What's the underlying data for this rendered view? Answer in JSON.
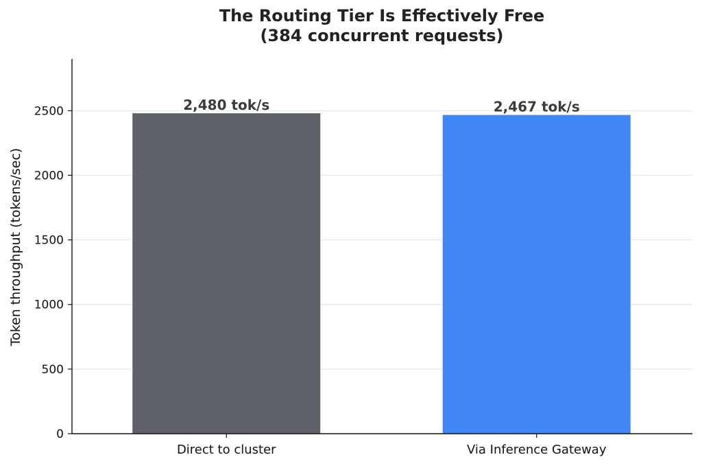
{
  "chart_data": {
    "type": "bar",
    "title": "The Routing Tier Is Effectively Free",
    "subtitle": "(384 concurrent requests)",
    "xlabel": "",
    "ylabel": "Token throughput (tokens/sec)",
    "categories": [
      "Direct to cluster",
      "Via Inference Gateway"
    ],
    "values": [
      2480,
      2467
    ],
    "data_labels": [
      "2,480 tok/s",
      "2,467 tok/s"
    ],
    "colors": [
      "#5f6168",
      "#4285f4"
    ],
    "ylim": [
      0,
      2900
    ],
    "yticks": [
      0,
      500,
      1000,
      1500,
      2000,
      2500
    ],
    "ytick_labels": [
      "0",
      "500",
      "1000",
      "1500",
      "2000",
      "2500"
    ],
    "grid": "horizontal",
    "legend": "none"
  }
}
